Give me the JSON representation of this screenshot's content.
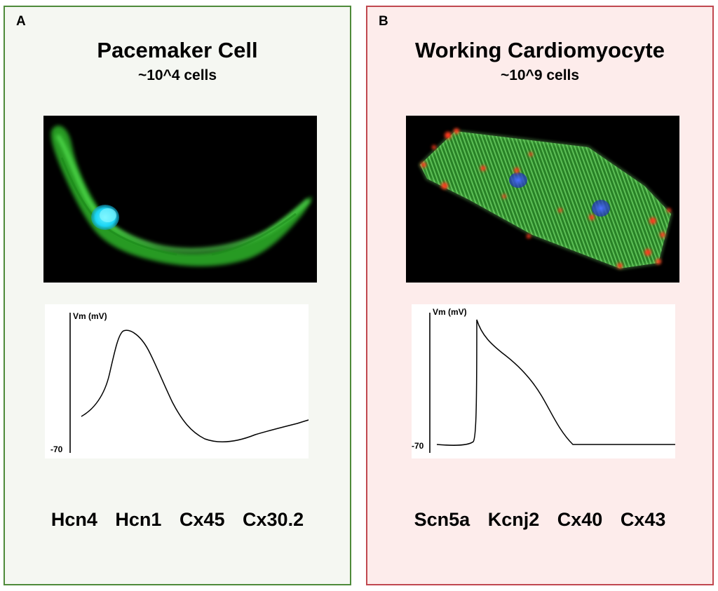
{
  "panels": [
    {
      "letter": "A",
      "title": "Pacemaker Cell",
      "subtitle": "~10^4 cells",
      "border_color": "#4e8a3a",
      "background": "#f5f7f2",
      "trace": {
        "y_label": "Vm (mV)",
        "baseline_label": "-70"
      },
      "genes": [
        "Hcn4",
        "Hcn1",
        "Cx45",
        "Cx30.2"
      ],
      "stain_colors": [
        "#33cc33",
        "#22ddff"
      ]
    },
    {
      "letter": "B",
      "title": "Working Cardiomyocyte",
      "subtitle": "~10^9 cells",
      "border_color": "#c0474f",
      "background": "#fdeceb",
      "trace": {
        "y_label": "Vm (mV)",
        "baseline_label": "-70"
      },
      "genes": [
        "Scn5a",
        "Kcnj2",
        "Cx40",
        "Cx43"
      ],
      "stain_colors": [
        "#3fae3a",
        "#3050e0",
        "#ff3b1f"
      ]
    }
  ]
}
